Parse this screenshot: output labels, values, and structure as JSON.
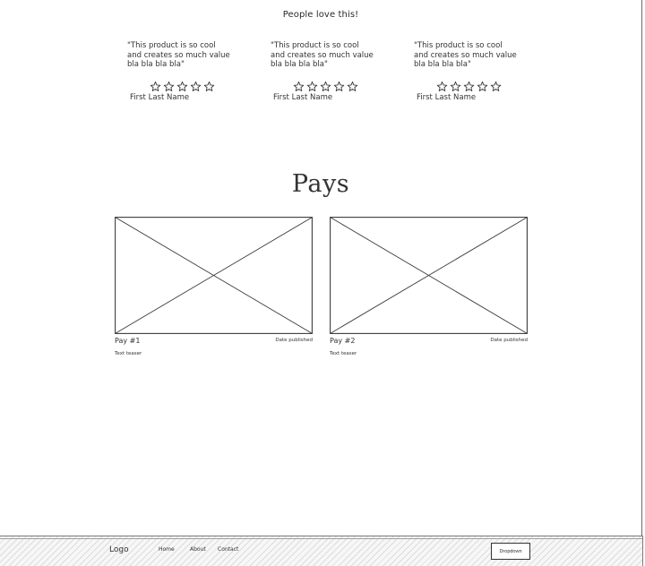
{
  "testimonials": {
    "title": "People love this!",
    "items": [
      {
        "quote": "\"This product is so cool\nand creates so much value\nbla bla bla bla\"",
        "rating": 0,
        "max_rating": 5,
        "author": "First Last Name"
      },
      {
        "quote": "\"This product is so cool\nand creates so much value\nbla bla bla bla\"",
        "rating": 0,
        "max_rating": 5,
        "author": "First Last Name"
      },
      {
        "quote": "\"This product is so cool\nand creates so much value\nbla bla bla bla\"",
        "rating": 0,
        "max_rating": 5,
        "author": "First Last Name"
      }
    ]
  },
  "pays": {
    "title": "Pays",
    "cards": [
      {
        "name": "Pay #1",
        "date": "Date published",
        "teaser": "Text teaser",
        "image": "placeholder-image"
      },
      {
        "name": "Pay #2",
        "date": "Date published",
        "teaser": "Text teaser",
        "image": "placeholder-image"
      }
    ]
  },
  "footer": {
    "logo": "Logo",
    "links": [
      "Home",
      "About",
      "Contact"
    ],
    "dropdown_label": "Dropdown"
  },
  "icons": {
    "star": "star-outline-icon",
    "image": "image-placeholder-icon"
  },
  "colors": {
    "ink": "#2a2a2a",
    "border": "#7a7a7a",
    "background": "#ffffff"
  }
}
